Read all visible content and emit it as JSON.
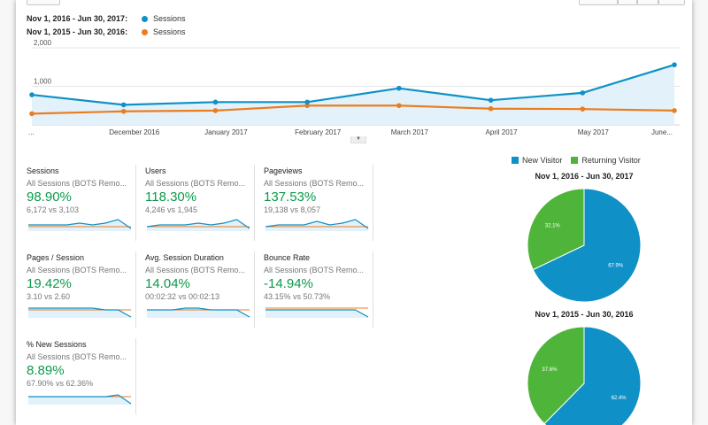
{
  "legend": [
    {
      "range": "Nov 1, 2016 - Jun 30, 2017:",
      "metric": "Sessions",
      "color": "#0f91c7"
    },
    {
      "range": "Nov 1, 2015 - Jun 30, 2016:",
      "metric": "Sessions",
      "color": "#ea7d1e"
    }
  ],
  "chart_data": {
    "type": "line",
    "y_ticks": [
      "2,000",
      "1,000"
    ],
    "ylim": [
      0,
      2000
    ],
    "x_labels": [
      "...",
      "December 2016",
      "January 2017",
      "February 2017",
      "March 2017",
      "April 2017",
      "May 2017",
      "June..."
    ],
    "series": [
      {
        "name": "Nov 1, 2016 - Jun 30, 2017: Sessions",
        "color": "#0f91c7",
        "values": [
          780,
          520,
          590,
          590,
          950,
          640,
          830,
          1560
        ]
      },
      {
        "name": "Nov 1, 2015 - Jun 30, 2016: Sessions",
        "color": "#ea7d1e",
        "values": [
          290,
          350,
          370,
          500,
          500,
          420,
          410,
          370
        ]
      }
    ]
  },
  "cards": [
    {
      "title": "Sessions",
      "sub": "All Sessions (BOTS Remo...",
      "pct": "98.90%",
      "cmp": "6,172 vs 3,103",
      "spark_a": [
        3,
        3,
        3,
        3,
        4,
        3,
        4,
        6,
        1
      ],
      "spark_b": [
        2,
        2,
        2,
        2,
        2,
        2,
        2,
        2,
        2
      ]
    },
    {
      "title": "Users",
      "sub": "All Sessions (BOTS Remo...",
      "pct": "118.30%",
      "cmp": "4,246 vs 1,945",
      "spark_a": [
        2,
        3,
        3,
        3,
        4,
        3,
        4,
        6,
        1
      ],
      "spark_b": [
        2,
        2,
        2,
        2,
        2,
        2,
        2,
        2,
        2
      ]
    },
    {
      "title": "Pageviews",
      "sub": "All Sessions (BOTS Remo...",
      "pct": "137.53%",
      "cmp": "19,138 vs 8,057",
      "spark_a": [
        2,
        3,
        3,
        3,
        5,
        3,
        4,
        6,
        1
      ],
      "spark_b": [
        2,
        2,
        2,
        2,
        2,
        2,
        2,
        2,
        2
      ]
    },
    {
      "title": "Pages / Session",
      "sub": "All Sessions (BOTS Remo...",
      "pct": "19.42%",
      "cmp": "3.10 vs 2.60",
      "spark_a": [
        5,
        5,
        5,
        5,
        5,
        5,
        4,
        4,
        0
      ],
      "spark_b": [
        4,
        4,
        4,
        4,
        4,
        4,
        4,
        4,
        4
      ]
    },
    {
      "title": "Avg. Session Duration",
      "sub": "All Sessions (BOTS Remo...",
      "pct": "14.04%",
      "cmp": "00:02:32 vs 00:02:13",
      "spark_a": [
        4,
        4,
        4,
        5,
        5,
        4,
        4,
        4,
        0
      ],
      "spark_b": [
        4,
        4,
        4,
        4,
        4,
        4,
        4,
        4,
        4
      ]
    },
    {
      "title": "Bounce Rate",
      "sub": "All Sessions (BOTS Remo...",
      "pct": "-14.94%",
      "cmp": "43.15% vs 50.73%",
      "spark_a": [
        4,
        4,
        4,
        4,
        4,
        4,
        4,
        4,
        0
      ],
      "spark_b": [
        5,
        5,
        5,
        5,
        5,
        5,
        5,
        5,
        5
      ]
    },
    {
      "title": "% New Sessions",
      "sub": "All Sessions (BOTS Remo...",
      "pct": "8.89%",
      "cmp": "67.90% vs 62.36%",
      "spark_a": [
        4,
        4,
        4,
        4,
        4,
        4,
        4,
        5,
        0
      ],
      "spark_b": [
        4,
        4,
        4,
        4,
        4,
        4,
        4,
        4,
        4
      ]
    }
  ],
  "pie_legend": [
    {
      "label": "New Visitor",
      "color": "#0f91c7"
    },
    {
      "label": "Returning Visitor",
      "color": "#4fb53a"
    }
  ],
  "pies": [
    {
      "title": "Nov 1, 2016 - Jun 30, 2017",
      "slices": [
        {
          "label": "New Visitor",
          "value": 67.9,
          "text": "67.9%",
          "color": "#0f91c7"
        },
        {
          "label": "Returning Visitor",
          "value": 32.1,
          "text": "32.1%",
          "color": "#4fb53a"
        }
      ]
    },
    {
      "title": "Nov 1, 2015 - Jun 30, 2016",
      "slices": [
        {
          "label": "New Visitor",
          "value": 62.4,
          "text": "62.4%",
          "color": "#0f91c7"
        },
        {
          "label": "Returning Visitor",
          "value": 37.6,
          "text": "37.6%",
          "color": "#4fb53a"
        }
      ]
    }
  ]
}
